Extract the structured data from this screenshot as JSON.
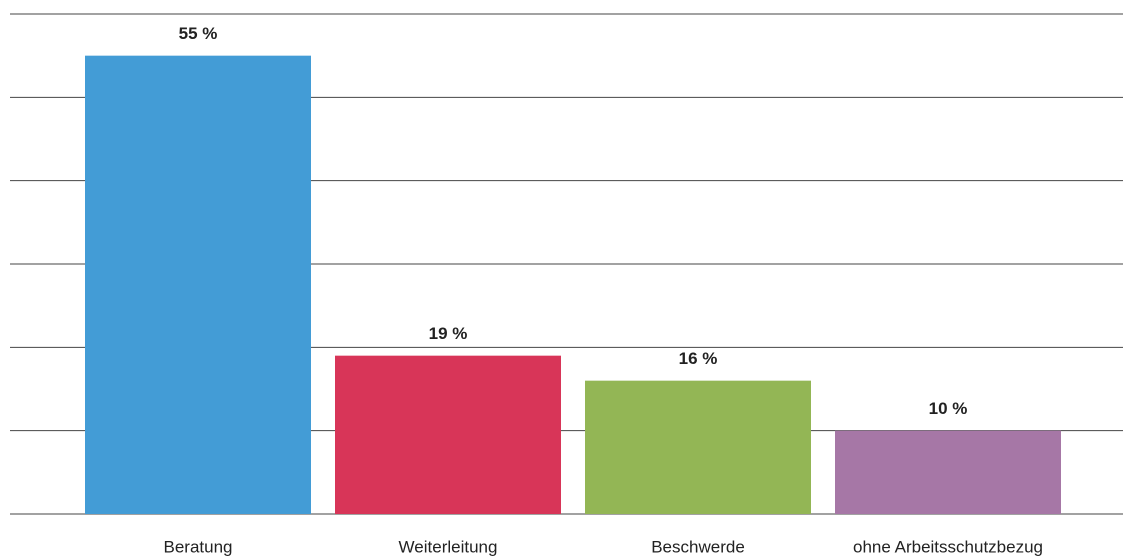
{
  "chart_data": {
    "type": "bar",
    "categories": [
      "Beratung",
      "Weiterleitung",
      "Beschwerde",
      "ohne Arbeitsschutzbezug"
    ],
    "values": [
      55,
      19,
      16,
      10
    ],
    "value_labels": [
      "55 %",
      "19 %",
      "16 %",
      "10 %"
    ],
    "colors": [
      "#439cd6",
      "#d83558",
      "#93b655",
      "#a677a6"
    ],
    "ylim": [
      0,
      60
    ],
    "yticks": [
      0,
      10,
      20,
      30,
      40,
      50,
      60
    ],
    "grid": true
  }
}
